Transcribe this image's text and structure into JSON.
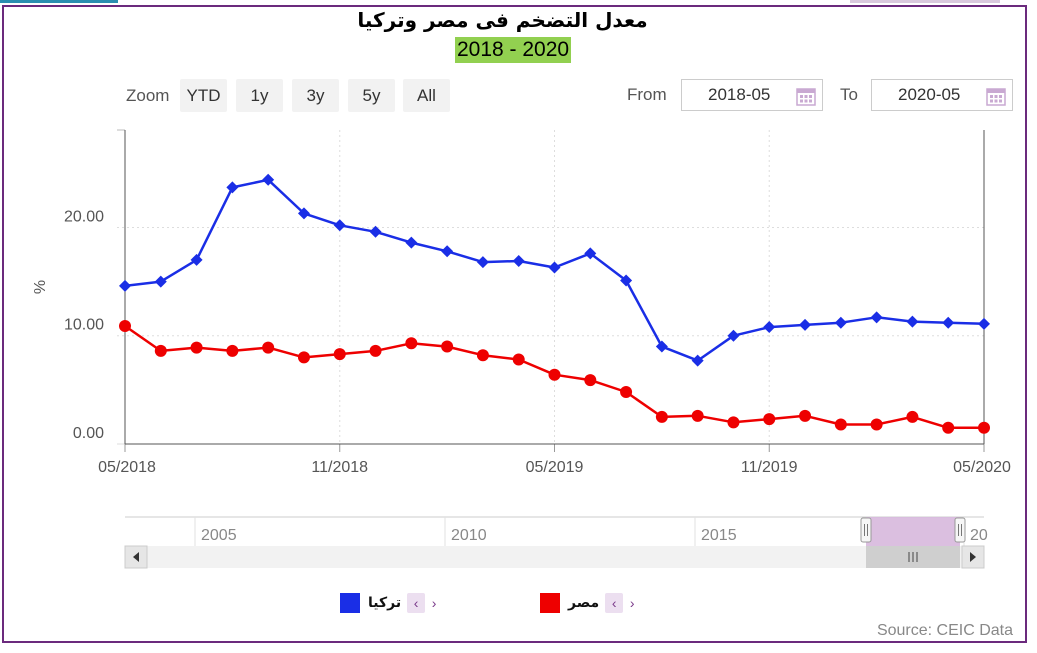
{
  "title": "معدل التضخم فى مصر وتركيا",
  "subtitle": "2018 - 2020",
  "toolbar": {
    "zoom_label": "Zoom",
    "buttons": [
      "YTD",
      "1y",
      "3y",
      "5y",
      "All"
    ],
    "from_label": "From",
    "from_value": "2018-05",
    "to_label": "To",
    "to_value": "2020-05"
  },
  "source": "Source: CEIC Data",
  "navigator": {
    "labels": [
      "2005",
      "2010",
      "2015",
      "20"
    ]
  },
  "colors": {
    "turkey": "#1a2ee6",
    "egypt": "#ee0000",
    "grid": "#dddddd",
    "accent": "#6b2a7d"
  },
  "chart_data": {
    "type": "line",
    "ylabel": "%",
    "ylim": [
      0,
      29
    ],
    "y_ticks": [
      "0.00",
      "10.00",
      "20.00"
    ],
    "x_tick_labels": [
      "05/2018",
      "11/2018",
      "05/2019",
      "11/2019",
      "05/2020"
    ],
    "x": [
      "05/2018",
      "06/2018",
      "07/2018",
      "08/2018",
      "09/2018",
      "10/2018",
      "11/2018",
      "12/2018",
      "01/2019",
      "02/2019",
      "03/2019",
      "04/2019",
      "05/2019",
      "06/2019",
      "07/2019",
      "08/2019",
      "09/2019",
      "10/2019",
      "11/2019",
      "12/2019",
      "01/2020",
      "02/2020",
      "03/2020",
      "04/2020",
      "05/2020"
    ],
    "series": [
      {
        "name": "تركيا",
        "color": "#1a2ee6",
        "marker": "diamond",
        "values": [
          14.6,
          15.0,
          17.0,
          23.7,
          24.4,
          21.3,
          20.2,
          19.6,
          18.6,
          17.8,
          16.8,
          16.9,
          16.3,
          17.6,
          15.1,
          9.0,
          7.7,
          10.0,
          10.8,
          11.0,
          11.2,
          11.7,
          11.3,
          11.2,
          11.1
        ]
      },
      {
        "name": "مصر",
        "color": "#ee0000",
        "marker": "circle",
        "values": [
          10.9,
          8.6,
          8.9,
          8.6,
          8.9,
          8.0,
          8.3,
          8.6,
          9.3,
          9.0,
          8.2,
          7.8,
          6.4,
          5.9,
          4.8,
          2.5,
          2.6,
          2.0,
          2.3,
          2.6,
          1.8,
          1.8,
          2.5,
          1.5,
          1.5
        ]
      }
    ],
    "legend_position": "bottom-center",
    "grid": true
  }
}
